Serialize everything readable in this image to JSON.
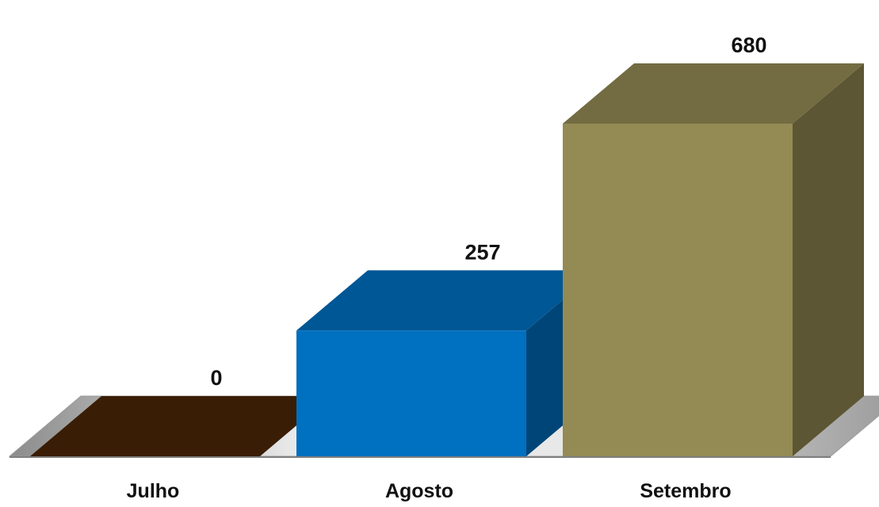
{
  "chart_data": {
    "type": "bar",
    "style": "3d-column",
    "categories": [
      "Julho",
      "Agosto",
      "Setembro"
    ],
    "values": [
      0,
      257,
      680
    ],
    "colors": [
      "#4a2506",
      "#0070c0",
      "#948a54"
    ],
    "floor_color": "#d9d9d9",
    "ylim": [
      0,
      680
    ],
    "grid": false,
    "legend": "none",
    "data_labels": [
      "0",
      "257",
      "680"
    ],
    "title": "",
    "xlabel": "",
    "ylabel": ""
  }
}
